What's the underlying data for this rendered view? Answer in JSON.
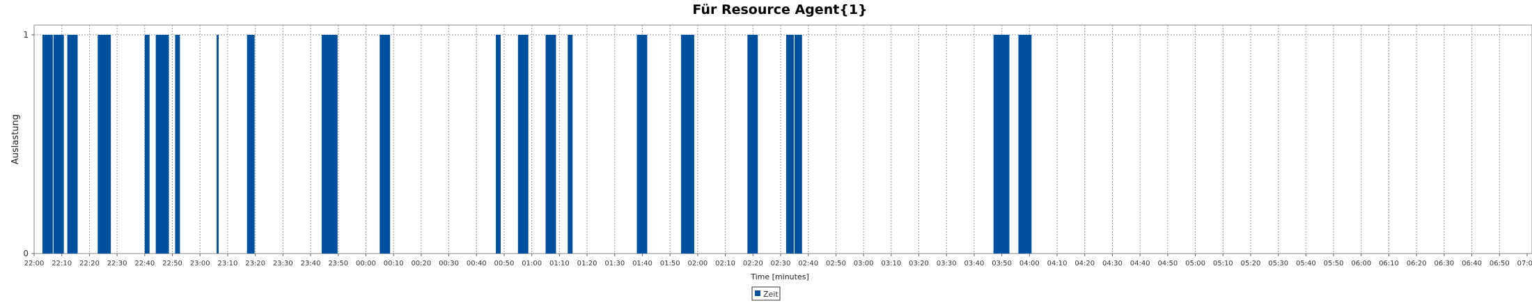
{
  "chart_data": {
    "type": "bar",
    "title": "Für Resource Agent{1}",
    "xlabel": "Time [minutes]",
    "ylabel": "Auslastung",
    "ylim": [
      0,
      1
    ],
    "yticks": [
      "0",
      "1"
    ],
    "xlim": [
      "22:00",
      "07:00"
    ],
    "xticks": [
      "22:00",
      "22:10",
      "22:20",
      "22:30",
      "22:40",
      "22:50",
      "23:00",
      "23:10",
      "23:20",
      "23:30",
      "23:40",
      "23:50",
      "00:00",
      "00:10",
      "00:20",
      "00:30",
      "00:40",
      "00:50",
      "01:00",
      "01:10",
      "01:20",
      "01:30",
      "01:40",
      "01:50",
      "02:00",
      "02:10",
      "02:20",
      "02:30",
      "02:40",
      "02:50",
      "03:00",
      "03:10",
      "03:20",
      "03:30",
      "03:40",
      "03:50",
      "04:00",
      "04:10",
      "04:20",
      "04:30",
      "04:40",
      "04:50",
      "05:00",
      "05:10",
      "05:20",
      "05:30",
      "05:40",
      "05:50",
      "06:00",
      "06:10",
      "06:20",
      "06:30",
      "06:40",
      "06:50",
      "07:00"
    ],
    "grid": true,
    "legend_position": "bottom-center",
    "series": [
      {
        "name": "Zeit",
        "color": "#0050a0",
        "intervals": [
          {
            "start": "22:03",
            "end": "22:07",
            "value": 1
          },
          {
            "start": "22:07",
            "end": "22:11",
            "value": 1
          },
          {
            "start": "22:12",
            "end": "22:16",
            "value": 1
          },
          {
            "start": "22:23",
            "end": "22:28",
            "value": 1
          },
          {
            "start": "22:40",
            "end": "22:42",
            "value": 1
          },
          {
            "start": "22:44",
            "end": "22:49",
            "value": 1
          },
          {
            "start": "22:51",
            "end": "22:53",
            "value": 1
          },
          {
            "start": "23:06",
            "end": "23:07",
            "value": 1
          },
          {
            "start": "23:17",
            "end": "23:20",
            "value": 1
          },
          {
            "start": "23:44",
            "end": "23:50",
            "value": 1
          },
          {
            "start": "00:05",
            "end": "00:09",
            "value": 1
          },
          {
            "start": "00:47",
            "end": "00:49",
            "value": 1
          },
          {
            "start": "00:55",
            "end": "00:59",
            "value": 1
          },
          {
            "start": "01:05",
            "end": "01:09",
            "value": 1
          },
          {
            "start": "01:13",
            "end": "01:15",
            "value": 1
          },
          {
            "start": "01:38",
            "end": "01:42",
            "value": 1
          },
          {
            "start": "01:54",
            "end": "01:59",
            "value": 1
          },
          {
            "start": "02:18",
            "end": "02:22",
            "value": 1
          },
          {
            "start": "02:32",
            "end": "02:35",
            "value": 1
          },
          {
            "start": "02:35",
            "end": "02:38",
            "value": 1
          },
          {
            "start": "03:47",
            "end": "03:53",
            "value": 1
          },
          {
            "start": "03:56",
            "end": "04:01",
            "value": 1
          }
        ]
      }
    ]
  }
}
